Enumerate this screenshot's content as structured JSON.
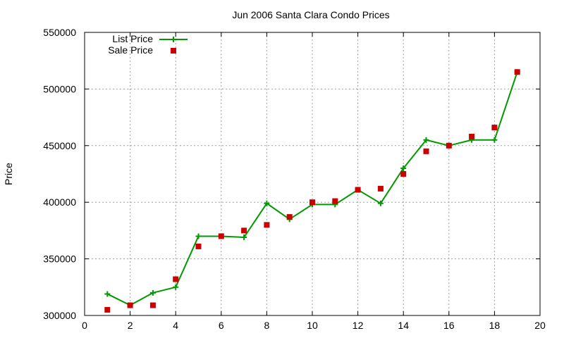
{
  "chart_data": {
    "type": "line",
    "title": "Jun 2006 Santa Clara Condo Prices",
    "xlabel": "",
    "ylabel": "Price",
    "xlim": [
      0,
      20
    ],
    "ylim": [
      300000,
      550000
    ],
    "xticks": [
      0,
      2,
      4,
      6,
      8,
      10,
      12,
      14,
      16,
      18,
      20
    ],
    "yticks": [
      300000,
      350000,
      400000,
      450000,
      500000,
      550000
    ],
    "grid": true,
    "legend_position": "top-left",
    "x": [
      1,
      2,
      3,
      4,
      5,
      6,
      7,
      8,
      9,
      10,
      11,
      12,
      13,
      14,
      15,
      16,
      17,
      18,
      19
    ],
    "series": [
      {
        "name": "List Price",
        "style": "line-plus",
        "color": "#009900",
        "values": [
          319000,
          309000,
          320000,
          325000,
          370000,
          370000,
          369000,
          399000,
          385000,
          398000,
          398000,
          411000,
          399000,
          430000,
          455000,
          450000,
          455000,
          455000,
          515000
        ]
      },
      {
        "name": "Sale Price",
        "style": "square",
        "color": "#cc0000",
        "values": [
          305000,
          309000,
          309000,
          332000,
          361000,
          370000,
          375000,
          380000,
          387000,
          400000,
          401000,
          411000,
          412000,
          425000,
          445000,
          450000,
          458000,
          466000,
          515000
        ]
      }
    ]
  }
}
